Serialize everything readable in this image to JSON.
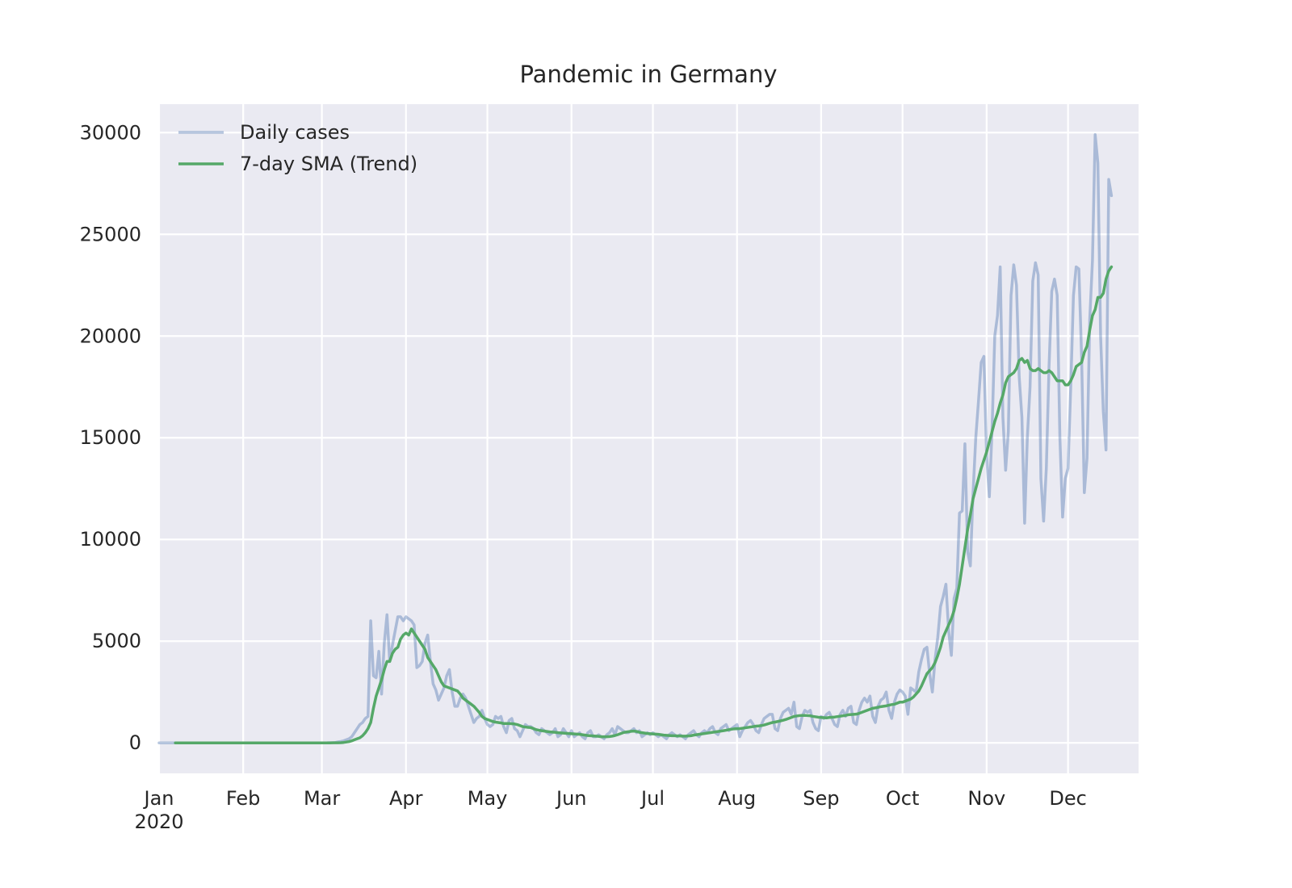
{
  "chart_data": {
    "type": "line",
    "title": "Pandemic in Germany",
    "grid": true,
    "legend": "upper left",
    "xlim": [
      "2020-01-01",
      "2020-12-27"
    ],
    "xticks": [
      {
        "value": "2020-01-01",
        "label": "Jan\n2020"
      },
      {
        "value": "2020-02-01",
        "label": "Feb"
      },
      {
        "value": "2020-03-01",
        "label": "Mar"
      },
      {
        "value": "2020-04-01",
        "label": "Apr"
      },
      {
        "value": "2020-05-01",
        "label": "May"
      },
      {
        "value": "2020-06-01",
        "label": "Jun"
      },
      {
        "value": "2020-07-01",
        "label": "Jul"
      },
      {
        "value": "2020-08-01",
        "label": "Aug"
      },
      {
        "value": "2020-09-01",
        "label": "Sep"
      },
      {
        "value": "2020-10-01",
        "label": "Oct"
      },
      {
        "value": "2020-11-01",
        "label": "Nov"
      },
      {
        "value": "2020-12-01",
        "label": "Dec"
      }
    ],
    "ylim": [
      -1500,
      31400
    ],
    "yticks": [
      0,
      5000,
      10000,
      15000,
      20000,
      25000,
      30000
    ],
    "x": [
      "2020-01-01",
      "2020-01-02",
      "2020-01-03",
      "2020-01-04",
      "2020-01-05",
      "2020-01-06",
      "2020-01-07",
      "2020-01-08",
      "2020-01-09",
      "2020-01-10",
      "2020-01-11",
      "2020-01-12",
      "2020-01-13",
      "2020-01-14",
      "2020-01-15",
      "2020-01-16",
      "2020-01-17",
      "2020-01-18",
      "2020-01-19",
      "2020-01-20",
      "2020-01-21",
      "2020-01-22",
      "2020-01-23",
      "2020-01-24",
      "2020-01-25",
      "2020-01-26",
      "2020-01-27",
      "2020-01-28",
      "2020-01-29",
      "2020-01-30",
      "2020-01-31",
      "2020-02-01",
      "2020-02-02",
      "2020-02-03",
      "2020-02-04",
      "2020-02-05",
      "2020-02-06",
      "2020-02-07",
      "2020-02-08",
      "2020-02-09",
      "2020-02-10",
      "2020-02-11",
      "2020-02-12",
      "2020-02-13",
      "2020-02-14",
      "2020-02-15",
      "2020-02-16",
      "2020-02-17",
      "2020-02-18",
      "2020-02-19",
      "2020-02-20",
      "2020-02-21",
      "2020-02-22",
      "2020-02-23",
      "2020-02-24",
      "2020-02-25",
      "2020-02-26",
      "2020-02-27",
      "2020-02-28",
      "2020-02-29",
      "2020-03-01",
      "2020-03-02",
      "2020-03-03",
      "2020-03-04",
      "2020-03-05",
      "2020-03-06",
      "2020-03-07",
      "2020-03-08",
      "2020-03-09",
      "2020-03-10",
      "2020-03-11",
      "2020-03-12",
      "2020-03-13",
      "2020-03-14",
      "2020-03-15",
      "2020-03-16",
      "2020-03-17",
      "2020-03-18",
      "2020-03-19",
      "2020-03-20",
      "2020-03-21",
      "2020-03-22",
      "2020-03-23",
      "2020-03-24",
      "2020-03-25",
      "2020-03-26",
      "2020-03-27",
      "2020-03-28",
      "2020-03-29",
      "2020-03-30",
      "2020-03-31",
      "2020-04-01",
      "2020-04-02",
      "2020-04-03",
      "2020-04-04",
      "2020-04-05",
      "2020-04-06",
      "2020-04-07",
      "2020-04-08",
      "2020-04-09",
      "2020-04-10",
      "2020-04-11",
      "2020-04-12",
      "2020-04-13",
      "2020-04-14",
      "2020-04-15",
      "2020-04-16",
      "2020-04-17",
      "2020-04-18",
      "2020-04-19",
      "2020-04-20",
      "2020-04-21",
      "2020-04-22",
      "2020-04-23",
      "2020-04-24",
      "2020-04-25",
      "2020-04-26",
      "2020-04-27",
      "2020-04-28",
      "2020-04-29",
      "2020-04-30",
      "2020-05-01",
      "2020-05-02",
      "2020-05-03",
      "2020-05-04",
      "2020-05-05",
      "2020-05-06",
      "2020-05-07",
      "2020-05-08",
      "2020-05-09",
      "2020-05-10",
      "2020-05-11",
      "2020-05-12",
      "2020-05-13",
      "2020-05-14",
      "2020-05-15",
      "2020-05-16",
      "2020-05-17",
      "2020-05-18",
      "2020-05-19",
      "2020-05-20",
      "2020-05-21",
      "2020-05-22",
      "2020-05-23",
      "2020-05-24",
      "2020-05-25",
      "2020-05-26",
      "2020-05-27",
      "2020-05-28",
      "2020-05-29",
      "2020-05-30",
      "2020-05-31",
      "2020-06-01",
      "2020-06-02",
      "2020-06-03",
      "2020-06-04",
      "2020-06-05",
      "2020-06-06",
      "2020-06-07",
      "2020-06-08",
      "2020-06-09",
      "2020-06-10",
      "2020-06-11",
      "2020-06-12",
      "2020-06-13",
      "2020-06-14",
      "2020-06-15",
      "2020-06-16",
      "2020-06-17",
      "2020-06-18",
      "2020-06-19",
      "2020-06-20",
      "2020-06-21",
      "2020-06-22",
      "2020-06-23",
      "2020-06-24",
      "2020-06-25",
      "2020-06-26",
      "2020-06-27",
      "2020-06-28",
      "2020-06-29",
      "2020-06-30",
      "2020-07-01",
      "2020-07-02",
      "2020-07-03",
      "2020-07-04",
      "2020-07-05",
      "2020-07-06",
      "2020-07-07",
      "2020-07-08",
      "2020-07-09",
      "2020-07-10",
      "2020-07-11",
      "2020-07-12",
      "2020-07-13",
      "2020-07-14",
      "2020-07-15",
      "2020-07-16",
      "2020-07-17",
      "2020-07-18",
      "2020-07-19",
      "2020-07-20",
      "2020-07-21",
      "2020-07-22",
      "2020-07-23",
      "2020-07-24",
      "2020-07-25",
      "2020-07-26",
      "2020-07-27",
      "2020-07-28",
      "2020-07-29",
      "2020-07-30",
      "2020-07-31",
      "2020-08-01",
      "2020-08-02",
      "2020-08-03",
      "2020-08-04",
      "2020-08-05",
      "2020-08-06",
      "2020-08-07",
      "2020-08-08",
      "2020-08-09",
      "2020-08-10",
      "2020-08-11",
      "2020-08-12",
      "2020-08-13",
      "2020-08-14",
      "2020-08-15",
      "2020-08-16",
      "2020-08-17",
      "2020-08-18",
      "2020-08-19",
      "2020-08-20",
      "2020-08-21",
      "2020-08-22",
      "2020-08-23",
      "2020-08-24",
      "2020-08-25",
      "2020-08-26",
      "2020-08-27",
      "2020-08-28",
      "2020-08-29",
      "2020-08-30",
      "2020-08-31",
      "2020-09-01",
      "2020-09-02",
      "2020-09-03",
      "2020-09-04",
      "2020-09-05",
      "2020-09-06",
      "2020-09-07",
      "2020-09-08",
      "2020-09-09",
      "2020-09-10",
      "2020-09-11",
      "2020-09-12",
      "2020-09-13",
      "2020-09-14",
      "2020-09-15",
      "2020-09-16",
      "2020-09-17",
      "2020-09-18",
      "2020-09-19",
      "2020-09-20",
      "2020-09-21",
      "2020-09-22",
      "2020-09-23",
      "2020-09-24",
      "2020-09-25",
      "2020-09-26",
      "2020-09-27",
      "2020-09-28",
      "2020-09-29",
      "2020-09-30",
      "2020-10-01",
      "2020-10-02",
      "2020-10-03",
      "2020-10-04",
      "2020-10-05",
      "2020-10-06",
      "2020-10-07",
      "2020-10-08",
      "2020-10-09",
      "2020-10-10",
      "2020-10-11",
      "2020-10-12",
      "2020-10-13",
      "2020-10-14",
      "2020-10-15",
      "2020-10-16",
      "2020-10-17",
      "2020-10-18",
      "2020-10-19",
      "2020-10-20",
      "2020-10-21",
      "2020-10-22",
      "2020-10-23",
      "2020-10-24",
      "2020-10-25",
      "2020-10-26",
      "2020-10-27",
      "2020-10-28",
      "2020-10-29",
      "2020-10-30",
      "2020-10-31",
      "2020-11-01",
      "2020-11-02",
      "2020-11-03",
      "2020-11-04",
      "2020-11-05",
      "2020-11-06",
      "2020-11-07",
      "2020-11-08",
      "2020-11-09",
      "2020-11-10",
      "2020-11-11",
      "2020-11-12",
      "2020-11-13",
      "2020-11-14",
      "2020-11-15",
      "2020-11-16",
      "2020-11-17",
      "2020-11-18",
      "2020-11-19",
      "2020-11-20",
      "2020-11-21",
      "2020-11-22",
      "2020-11-23",
      "2020-11-24",
      "2020-11-25",
      "2020-11-26",
      "2020-11-27",
      "2020-11-28",
      "2020-11-29",
      "2020-11-30",
      "2020-12-01",
      "2020-12-02",
      "2020-12-03",
      "2020-12-04",
      "2020-12-05",
      "2020-12-06",
      "2020-12-07",
      "2020-12-08",
      "2020-12-09",
      "2020-12-10",
      "2020-12-11",
      "2020-12-12",
      "2020-12-13",
      "2020-12-14",
      "2020-12-15",
      "2020-12-16",
      "2020-12-17"
    ],
    "series": [
      {
        "name": "Daily cases",
        "color": "#4c72b0",
        "alpha": 0.4,
        "values": [
          0,
          0,
          0,
          0,
          0,
          0,
          0,
          0,
          0,
          0,
          0,
          0,
          0,
          0,
          0,
          0,
          0,
          0,
          0,
          0,
          0,
          0,
          0,
          0,
          0,
          0,
          0,
          0,
          0,
          0,
          0,
          0,
          0,
          0,
          0,
          0,
          0,
          0,
          0,
          0,
          0,
          0,
          0,
          0,
          0,
          0,
          0,
          0,
          0,
          0,
          0,
          0,
          0,
          0,
          0,
          0,
          0,
          0,
          0,
          0,
          0,
          0,
          1,
          10,
          10,
          20,
          50,
          70,
          100,
          150,
          200,
          300,
          500,
          700,
          900,
          1000,
          1200,
          1300,
          6000,
          3300,
          3200,
          4500,
          2400,
          4900,
          6300,
          4000,
          4800,
          5500,
          6200,
          6200,
          6000,
          6200,
          6100,
          6000,
          5800,
          3700,
          3800,
          4000,
          4900,
          5300,
          4000,
          2900,
          2600,
          2100,
          2400,
          2700,
          3300,
          3600,
          2500,
          1800,
          1800,
          2200,
          2400,
          2200,
          1800,
          1400,
          1000,
          1200,
          1300,
          1600,
          1200,
          900,
          800,
          900,
          1300,
          1200,
          1300,
          800,
          500,
          1100,
          1200,
          700,
          600,
          300,
          600,
          900,
          800,
          800,
          700,
          500,
          400,
          700,
          600,
          500,
          400,
          500,
          700,
          300,
          400,
          700,
          500,
          300,
          600,
          300,
          400,
          500,
          300,
          200,
          500,
          600,
          300,
          300,
          400,
          300,
          200,
          400,
          500,
          700,
          400,
          800,
          700,
          600,
          500,
          500,
          600,
          700,
          500,
          600,
          300,
          400,
          500,
          400,
          500,
          400,
          300,
          400,
          300,
          200,
          400,
          500,
          400,
          300,
          400,
          300,
          200,
          400,
          500,
          600,
          400,
          300,
          500,
          600,
          500,
          700,
          800,
          500,
          400,
          700,
          800,
          900,
          600,
          700,
          800,
          900,
          300,
          600,
          800,
          1000,
          1100,
          900,
          600,
          500,
          900,
          1200,
          1300,
          1400,
          1400,
          700,
          600,
          1200,
          1500,
          1600,
          1700,
          1400,
          2000,
          800,
          700,
          1300,
          1600,
          1500,
          1600,
          1000,
          700,
          600,
          1300,
          1200,
          1400,
          1500,
          1200,
          900,
          800,
          1400,
          1600,
          1300,
          1700,
          1800,
          1000,
          900,
          1600,
          2000,
          2200,
          2000,
          2300,
          1300,
          1000,
          1800,
          2100,
          2200,
          2500,
          1600,
          1200,
          2000,
          2400,
          2600,
          2500,
          2300,
          1400,
          2700,
          2600,
          2500,
          3500,
          4100,
          4600,
          4700,
          3400,
          2500,
          4100,
          5200,
          6700,
          7200,
          7800,
          5500,
          4300,
          7100,
          7600,
          11300,
          11400,
          14700,
          9400,
          8700,
          12300,
          15000,
          16800,
          18700,
          19000,
          14100,
          12100,
          15400,
          20000,
          21000,
          23400,
          16000,
          13400,
          15300,
          22000,
          23500,
          22500,
          18000,
          16000,
          10800,
          15000,
          17500,
          22700,
          23600,
          23000,
          13000,
          10900,
          13500,
          18500,
          22200,
          22800,
          22000,
          15000,
          11100,
          13000,
          13500,
          17500,
          22000,
          23400,
          23300,
          19000,
          12300,
          14000,
          20800,
          23700,
          29900,
          28500,
          20000,
          16300,
          14400,
          27700,
          26900
        ]
      },
      {
        "name": "7-day SMA (Trend)",
        "color": "#55a868",
        "alpha": 1,
        "values": [
          null,
          null,
          null,
          null,
          null,
          null,
          0,
          0,
          0,
          0,
          0,
          0,
          0,
          0,
          0,
          0,
          0,
          0,
          0,
          0,
          0,
          0,
          0,
          0,
          0,
          0,
          0,
          0,
          0,
          0,
          0,
          0,
          0,
          0,
          0,
          0,
          0,
          0,
          0,
          0,
          0,
          0,
          0,
          0,
          0,
          0,
          0,
          0,
          0,
          0,
          0,
          0,
          0,
          0,
          0,
          0,
          0,
          0,
          0,
          0,
          0,
          0,
          0,
          0,
          1,
          2,
          5,
          10,
          20,
          40,
          60,
          100,
          150,
          200,
          250,
          350,
          500,
          700,
          1000,
          1700,
          2300,
          2700,
          3100,
          3600,
          4000,
          4000,
          4400,
          4600,
          4700,
          5100,
          5300,
          5400,
          5300,
          5600,
          5400,
          5200,
          5000,
          4800,
          4600,
          4200,
          4000,
          3800,
          3600,
          3300,
          3000,
          2800,
          2750,
          2700,
          2650,
          2600,
          2550,
          2400,
          2200,
          2100,
          2000,
          1900,
          1800,
          1650,
          1500,
          1300,
          1200,
          1150,
          1100,
          1050,
          1020,
          1000,
          980,
          950,
          950,
          950,
          940,
          930,
          900,
          850,
          800,
          780,
          760,
          750,
          700,
          650,
          620,
          600,
          580,
          560,
          540,
          530,
          520,
          500,
          490,
          480,
          470,
          460,
          450,
          440,
          430,
          420,
          400,
          380,
          360,
          350,
          340,
          330,
          320,
          300,
          300,
          300,
          310,
          330,
          360,
          400,
          450,
          500,
          530,
          550,
          570,
          580,
          560,
          520,
          500,
          480,
          460,
          450,
          440,
          430,
          420,
          400,
          380,
          370,
          360,
          350,
          350,
          340,
          340,
          330,
          330,
          340,
          350,
          380,
          400,
          420,
          440,
          460,
          480,
          500,
          520,
          540,
          560,
          580,
          600,
          620,
          650,
          670,
          690,
          700,
          700,
          720,
          740,
          760,
          780,
          800,
          820,
          830,
          850,
          880,
          920,
          960,
          1000,
          1020,
          1050,
          1080,
          1110,
          1150,
          1200,
          1250,
          1300,
          1320,
          1340,
          1350,
          1350,
          1340,
          1330,
          1300,
          1280,
          1260,
          1250,
          1240,
          1230,
          1250,
          1260,
          1270,
          1290,
          1310,
          1330,
          1350,
          1380,
          1390,
          1400,
          1410,
          1450,
          1500,
          1550,
          1600,
          1650,
          1700,
          1720,
          1750,
          1780,
          1800,
          1820,
          1850,
          1880,
          1900,
          1950,
          2000,
          2000,
          2050,
          2100,
          2150,
          2250,
          2400,
          2550,
          2800,
          3100,
          3400,
          3550,
          3700,
          3950,
          4300,
          4700,
          5200,
          5500,
          5800,
          6100,
          6500,
          7100,
          7800,
          8700,
          9600,
          10500,
          11200,
          12000,
          12500,
          13000,
          13500,
          13900,
          14300,
          14800,
          15300,
          15800,
          16200,
          16700,
          17100,
          17700,
          18000,
          18100,
          18200,
          18400,
          18800,
          18900,
          18700,
          18800,
          18400,
          18300,
          18300,
          18400,
          18300,
          18200,
          18200,
          18300,
          18200,
          18000,
          17800,
          17800,
          17800,
          17600,
          17600,
          17800,
          18100,
          18500,
          18600,
          18700,
          19200,
          19500,
          20300,
          21000,
          21300,
          21900,
          21900,
          22100,
          22800,
          23200,
          23400
        ]
      }
    ]
  }
}
